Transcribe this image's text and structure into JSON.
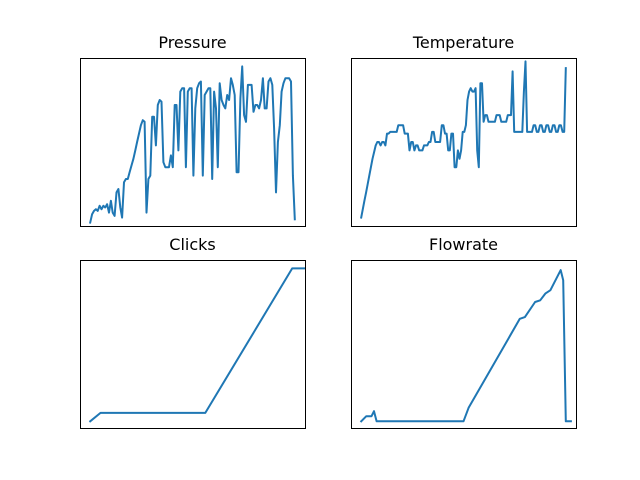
{
  "chart_data": [
    {
      "type": "line",
      "title": "Pressure",
      "xlabel": "",
      "ylabel": "",
      "axis_ticks": false,
      "grid": false,
      "legend": "none",
      "color": "#1f77b4",
      "xlim": [
        -4,
        84
      ],
      "ylim": [
        0,
        100
      ],
      "y": [
        2,
        7,
        9,
        10,
        9,
        12,
        10,
        12,
        11,
        13,
        8,
        15,
        8,
        6,
        20,
        22,
        11,
        5,
        26,
        28,
        28,
        32,
        36,
        40,
        45,
        50,
        55,
        60,
        63,
        62,
        8,
        28,
        30,
        65,
        65,
        48,
        72,
        75,
        74,
        38,
        35,
        35,
        35,
        42,
        35,
        72,
        72,
        45,
        80,
        82,
        82,
        35,
        80,
        82,
        82,
        30,
        70,
        82,
        85,
        86,
        30,
        78,
        80,
        82,
        82,
        28,
        80,
        70,
        35,
        85,
        75,
        72,
        70,
        78,
        75,
        88,
        84,
        78,
        32,
        32,
        76,
        95,
        66,
        62,
        84,
        84,
        84,
        68,
        72,
        72,
        70,
        75,
        88,
        70,
        70,
        86,
        88,
        84,
        58,
        20,
        50,
        60,
        80,
        85,
        88,
        88,
        88,
        86,
        30,
        4
      ]
    },
    {
      "type": "line",
      "title": "Temperature",
      "xlabel": "",
      "ylabel": "",
      "axis_ticks": false,
      "grid": false,
      "legend": "none",
      "color": "#1f77b4",
      "xlim": [
        -4,
        84
      ],
      "ylim": [
        0,
        100
      ],
      "y": [
        5,
        10,
        15,
        20,
        25,
        30,
        35,
        40,
        44,
        48,
        50,
        50,
        48,
        50,
        50,
        48,
        55,
        55,
        56,
        56,
        56,
        56,
        56,
        60,
        60,
        60,
        60,
        55,
        55,
        55,
        45,
        50,
        50,
        45,
        48,
        48,
        45,
        45,
        45,
        48,
        48,
        48,
        50,
        50,
        56,
        56,
        50,
        50,
        50,
        50,
        60,
        60,
        55,
        55,
        45,
        45,
        55,
        55,
        35,
        35,
        45,
        40,
        45,
        56,
        56,
        60,
        75,
        80,
        82,
        80,
        80,
        82,
        45,
        35,
        85,
        85,
        62,
        66,
        66,
        62,
        62,
        62,
        62,
        62,
        66,
        66,
        66,
        62,
        62,
        62,
        62,
        66,
        66,
        66,
        92,
        56,
        56,
        56,
        56,
        56,
        56,
        80,
        98,
        56,
        56,
        56,
        56,
        60,
        60,
        56,
        56,
        60,
        60,
        56,
        56,
        60,
        60,
        56,
        56,
        60,
        60,
        56,
        56,
        60,
        60,
        56,
        56,
        94
      ]
    },
    {
      "type": "line",
      "title": "Clicks",
      "xlabel": "",
      "ylabel": "",
      "axis_ticks": false,
      "grid": false,
      "legend": "none",
      "color": "#1f77b4",
      "xlim": [
        -4,
        84
      ],
      "ylim": [
        0,
        100
      ],
      "x": [
        0,
        4,
        45,
        79,
        84
      ],
      "y": [
        4,
        9,
        9,
        95,
        95
      ]
    },
    {
      "type": "line",
      "title": "Flowrate",
      "xlabel": "",
      "ylabel": "",
      "axis_ticks": false,
      "grid": false,
      "legend": "none",
      "color": "#1f77b4",
      "xlim": [
        -4,
        84
      ],
      "ylim": [
        0,
        100
      ],
      "x": [
        0,
        2,
        4,
        5,
        6,
        8,
        40,
        42,
        62,
        64,
        68,
        70,
        72,
        74,
        78,
        79,
        80,
        81,
        82
      ],
      "y": [
        4,
        7,
        7,
        10,
        4,
        4,
        4,
        12,
        65,
        66,
        75,
        76,
        80,
        82,
        94,
        88,
        4,
        4,
        4
      ]
    }
  ]
}
